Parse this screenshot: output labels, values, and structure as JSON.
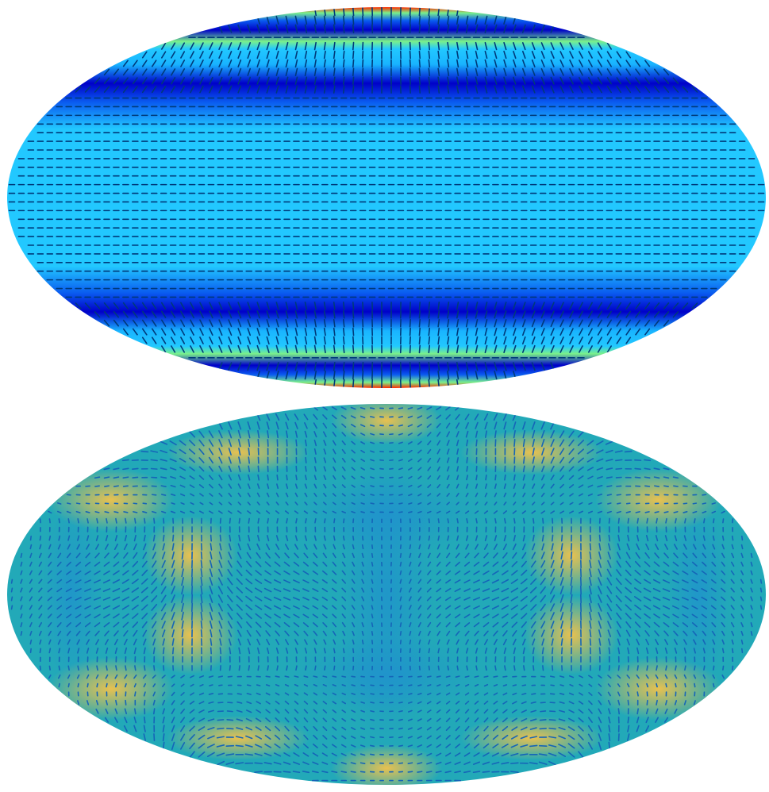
{
  "figure": {
    "projection": "mollweide",
    "panels": [
      {
        "id": "top",
        "colormap": "jet",
        "field_pattern": "zonal-bands",
        "band_colors": [
          "#0000c8",
          "#0a5cf0",
          "#19b4ff",
          "#22c8ff",
          "#7af08a",
          "#ff2a00"
        ],
        "vector_color": "#003a7a"
      },
      {
        "id": "bottom",
        "colormap": "parula",
        "field_pattern": "multipole-lobes",
        "base_color": "#22a9b8",
        "low_color": "#1f8fd0",
        "high_color": "#f2c24b",
        "vector_color": "#1565b8"
      }
    ]
  }
}
